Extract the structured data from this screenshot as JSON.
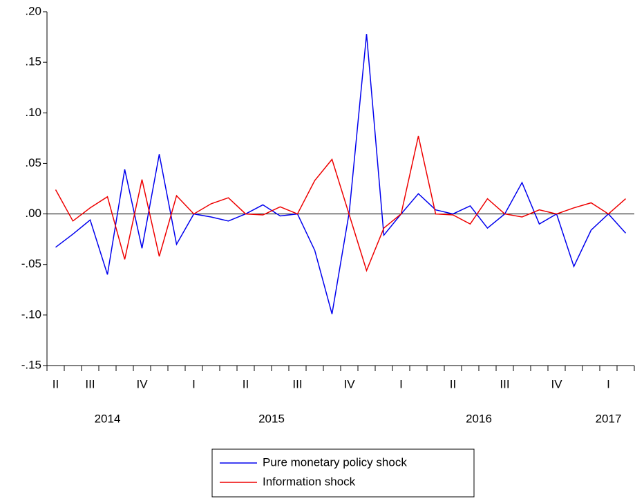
{
  "chart_data": {
    "type": "line",
    "ylim": [
      -0.15,
      0.2
    ],
    "yticks": [
      {
        "value": 0.2,
        "label": ".20"
      },
      {
        "value": 0.15,
        "label": ".15"
      },
      {
        "value": 0.1,
        "label": ".10"
      },
      {
        "value": 0.05,
        "label": ".05"
      },
      {
        "value": 0,
        "label": ".00"
      },
      {
        "value": -0.05,
        "label": "-.05"
      },
      {
        "value": -0.1,
        "label": "-.10"
      },
      {
        "value": -0.15,
        "label": "-.15"
      }
    ],
    "zero_line": true,
    "quarters": [
      {
        "label": "II",
        "months": 1
      },
      {
        "label": "III",
        "months": 3
      },
      {
        "label": "IV",
        "months": 3
      },
      {
        "label": "I",
        "months": 3
      },
      {
        "label": "II",
        "months": 3
      },
      {
        "label": "III",
        "months": 3
      },
      {
        "label": "IV",
        "months": 3
      },
      {
        "label": "I",
        "months": 3
      },
      {
        "label": "II",
        "months": 3
      },
      {
        "label": "III",
        "months": 3
      },
      {
        "label": "IV",
        "months": 3
      },
      {
        "label": "I",
        "months": 3
      }
    ],
    "years": [
      {
        "label": "2014",
        "months": 7
      },
      {
        "label": "2015",
        "months": 12
      },
      {
        "label": "2016",
        "months": 12
      },
      {
        "label": "2017",
        "months": 3
      }
    ],
    "legend": "bottom",
    "series": [
      {
        "name": "Pure monetary policy shock",
        "color": "#0000ee",
        "values": [
          -0.033,
          -0.02,
          -0.006,
          -0.06,
          0.044,
          -0.034,
          0.059,
          -0.03,
          0,
          -0.003,
          -0.007,
          0,
          0.009,
          -0.002,
          0,
          -0.036,
          -0.099,
          0.002,
          0.178,
          -0.021,
          0,
          0.02,
          0.004,
          0,
          0.008,
          -0.014,
          0,
          0.031,
          -0.01,
          0,
          -0.052,
          -0.016,
          0,
          -0.019
        ]
      },
      {
        "name": "Information shock",
        "color": "#ee0000",
        "values": [
          0.024,
          -0.007,
          0.006,
          0.017,
          -0.045,
          0.034,
          -0.042,
          0.018,
          0,
          0.01,
          0.016,
          0,
          -0.001,
          0.007,
          0,
          0.033,
          0.054,
          -0.001,
          -0.056,
          -0.014,
          0,
          0.077,
          0,
          -0.001,
          -0.01,
          0.015,
          0,
          -0.003,
          0.004,
          0,
          0.006,
          0.011,
          0,
          0.015
        ]
      }
    ]
  }
}
